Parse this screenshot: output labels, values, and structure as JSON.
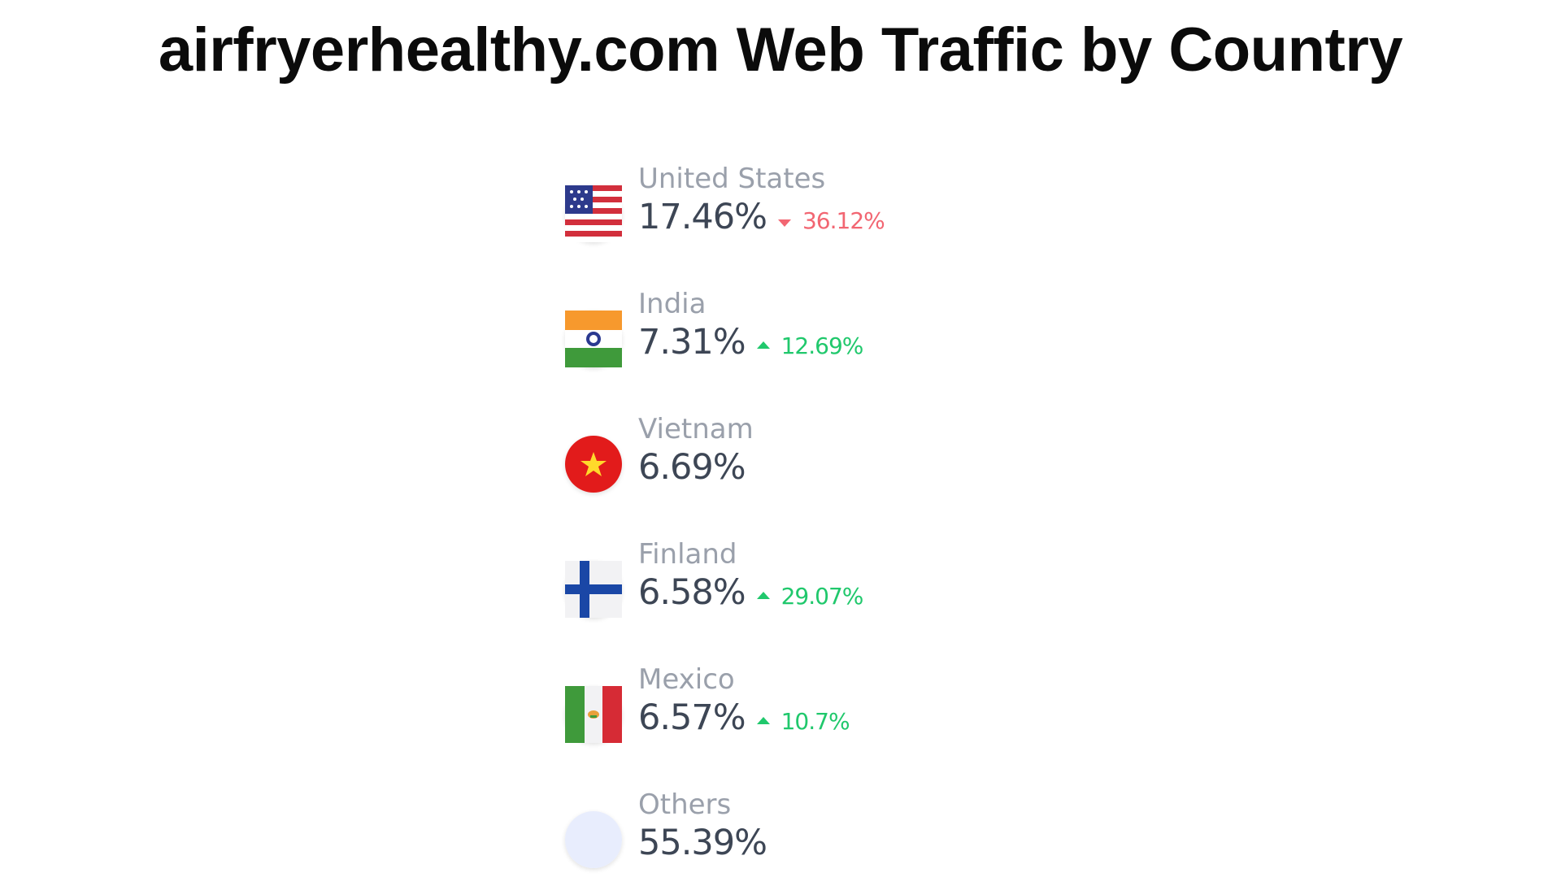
{
  "header": {
    "title": "airfryerhealthy.com Web Traffic by Country"
  },
  "countries": [
    {
      "name": "United States",
      "share": "17.46%",
      "change": "36.12%",
      "trend": "down"
    },
    {
      "name": "India",
      "share": "7.31%",
      "change": "12.69%",
      "trend": "up"
    },
    {
      "name": "Vietnam",
      "share": "6.69%"
    },
    {
      "name": "Finland",
      "share": "6.58%",
      "change": "29.07%",
      "trend": "up"
    },
    {
      "name": "Mexico",
      "share": "6.57%",
      "change": "10.7%",
      "trend": "up"
    },
    {
      "name": "Others",
      "share": "55.39%"
    }
  ]
}
